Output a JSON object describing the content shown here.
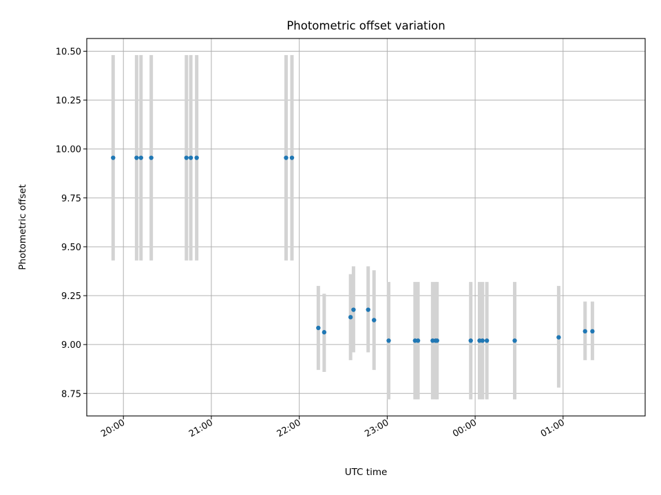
{
  "chart_data": {
    "type": "scatter",
    "title": "Photometric offset variation",
    "xlabel": "UTC time",
    "ylabel": "Photometric offset",
    "x_axis_kind": "time",
    "xlim": [
      "19:35",
      "01:56"
    ],
    "ylim": [
      8.635,
      10.565
    ],
    "x_ticks": [
      "20:00",
      "21:00",
      "22:00",
      "23:00",
      "00:00",
      "01:00"
    ],
    "y_ticks": [
      "8.75",
      "9.00",
      "9.25",
      "9.50",
      "9.75",
      "10.00",
      "10.25",
      "10.50"
    ],
    "grid": true,
    "marker_color": "#1f77b4",
    "errorbar_color": "#d3d3d3",
    "points": [
      {
        "time": "19:53",
        "y": 9.955,
        "err_low": 9.43,
        "err_high": 10.48
      },
      {
        "time": "20:09",
        "y": 9.955,
        "err_low": 9.43,
        "err_high": 10.48
      },
      {
        "time": "20:12",
        "y": 9.955,
        "err_low": 9.43,
        "err_high": 10.48
      },
      {
        "time": "20:19",
        "y": 9.955,
        "err_low": 9.43,
        "err_high": 10.48
      },
      {
        "time": "20:43",
        "y": 9.955,
        "err_low": 9.43,
        "err_high": 10.48
      },
      {
        "time": "20:46",
        "y": 9.955,
        "err_low": 9.43,
        "err_high": 10.48
      },
      {
        "time": "20:50",
        "y": 9.955,
        "err_low": 9.43,
        "err_high": 10.48
      },
      {
        "time": "21:51",
        "y": 9.955,
        "err_low": 9.43,
        "err_high": 10.48
      },
      {
        "time": "21:55",
        "y": 9.955,
        "err_low": 9.43,
        "err_high": 10.48
      },
      {
        "time": "22:13",
        "y": 9.085,
        "err_low": 8.87,
        "err_high": 9.3
      },
      {
        "time": "22:17",
        "y": 9.063,
        "err_low": 8.86,
        "err_high": 9.26
      },
      {
        "time": "22:35",
        "y": 9.14,
        "err_low": 8.92,
        "err_high": 9.36
      },
      {
        "time": "22:37",
        "y": 9.178,
        "err_low": 8.96,
        "err_high": 9.4
      },
      {
        "time": "22:47",
        "y": 9.178,
        "err_low": 8.96,
        "err_high": 9.4
      },
      {
        "time": "22:51",
        "y": 9.125,
        "err_low": 8.87,
        "err_high": 9.38
      },
      {
        "time": "23:01",
        "y": 9.02,
        "err_low": 8.72,
        "err_high": 9.32
      },
      {
        "time": "23:19",
        "y": 9.02,
        "err_low": 8.72,
        "err_high": 9.32
      },
      {
        "time": "23:21",
        "y": 9.02,
        "err_low": 8.72,
        "err_high": 9.32
      },
      {
        "time": "23:31",
        "y": 9.02,
        "err_low": 8.72,
        "err_high": 9.32
      },
      {
        "time": "23:33",
        "y": 9.02,
        "err_low": 8.72,
        "err_high": 9.32
      },
      {
        "time": "23:34",
        "y": 9.02,
        "err_low": 8.72,
        "err_high": 9.32
      },
      {
        "time": "23:57",
        "y": 9.02,
        "err_low": 8.72,
        "err_high": 9.32
      },
      {
        "time": "00:03",
        "y": 9.02,
        "err_low": 8.72,
        "err_high": 9.32
      },
      {
        "time": "00:05",
        "y": 9.02,
        "err_low": 8.72,
        "err_high": 9.32
      },
      {
        "time": "00:08",
        "y": 9.02,
        "err_low": 8.72,
        "err_high": 9.32
      },
      {
        "time": "00:27",
        "y": 9.02,
        "err_low": 8.72,
        "err_high": 9.32
      },
      {
        "time": "00:57",
        "y": 9.037,
        "err_low": 8.78,
        "err_high": 9.3
      },
      {
        "time": "01:15",
        "y": 9.068,
        "err_low": 8.92,
        "err_high": 9.22
      },
      {
        "time": "01:20",
        "y": 9.068,
        "err_low": 8.92,
        "err_high": 9.22
      }
    ]
  }
}
